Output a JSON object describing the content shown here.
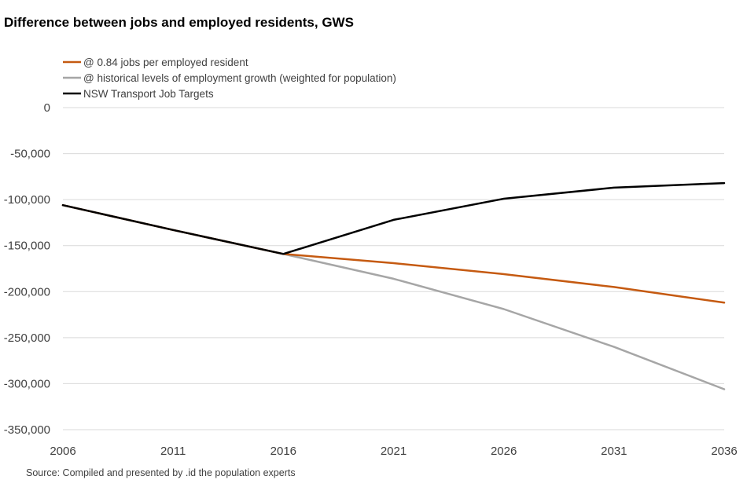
{
  "chart_data": {
    "type": "line",
    "title": "Difference between jobs and employed residents, GWS",
    "xlabel": "",
    "ylabel": "",
    "x": [
      2006,
      2011,
      2016,
      2021,
      2026,
      2031,
      2036
    ],
    "xticks": [
      "2006",
      "2011",
      "2016",
      "2021",
      "2026",
      "2031",
      "2036"
    ],
    "ylim": [
      -350000,
      0
    ],
    "yticks": [
      "0",
      "-50,000",
      "-100,000",
      "-150,000",
      "-200,000",
      "-250,000",
      "-300,000",
      "-350,000"
    ],
    "ytick_values": [
      0,
      -50000,
      -100000,
      -150000,
      -200000,
      -250000,
      -300000,
      -350000
    ],
    "grid": "horizontal",
    "legend_position": "top-left",
    "series": [
      {
        "name": "@ 0.84 jobs per employed resident",
        "color": "#C55A11",
        "values": [
          -106000,
          -133000,
          -159000,
          -169000,
          -181000,
          -195000,
          -212000
        ]
      },
      {
        "name": "@ historical levels of employment growth (weighted for population)",
        "color": "#A6A6A6",
        "values": [
          -106000,
          -133000,
          -159000,
          -186000,
          -219000,
          -260000,
          -306000
        ]
      },
      {
        "name": "NSW Transport Job Targets",
        "color": "#000000",
        "values": [
          -106000,
          -133000,
          -159000,
          -122000,
          -99000,
          -87000,
          -82000
        ]
      }
    ],
    "source": "Source: Compiled and presented by .id the population experts"
  }
}
